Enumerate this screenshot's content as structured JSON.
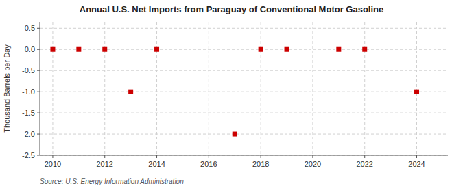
{
  "chart_data": {
    "type": "scatter",
    "title": "Annual U.S. Net Imports from Paraguay of Conventional Motor Gasoline",
    "ylabel": "Thousand Barrels per Day",
    "annotations": [
      "Source: U.S. Energy Information Administration"
    ],
    "x": [
      2010,
      2011,
      2012,
      2013,
      2014,
      2017,
      2018,
      2019,
      2021,
      2022,
      2024
    ],
    "values": [
      0,
      0,
      0,
      -1,
      0,
      -2,
      0,
      0,
      0,
      0,
      -1
    ],
    "color": "#cc0000",
    "marker": "square",
    "xlim": [
      2009.5,
      2025.2
    ],
    "ylim": [
      -2.5,
      0.65
    ],
    "xticks": [
      2010,
      2012,
      2014,
      2016,
      2018,
      2020,
      2022,
      2024
    ],
    "yticks": [
      0.5,
      {
        "value": 0,
        "label": "0.0"
      },
      -0.5,
      {
        "value": -1,
        "label": "-1.0"
      },
      -1.5,
      {
        "value": -2,
        "label": "-2.0"
      },
      -2.5
    ],
    "grid": true
  }
}
